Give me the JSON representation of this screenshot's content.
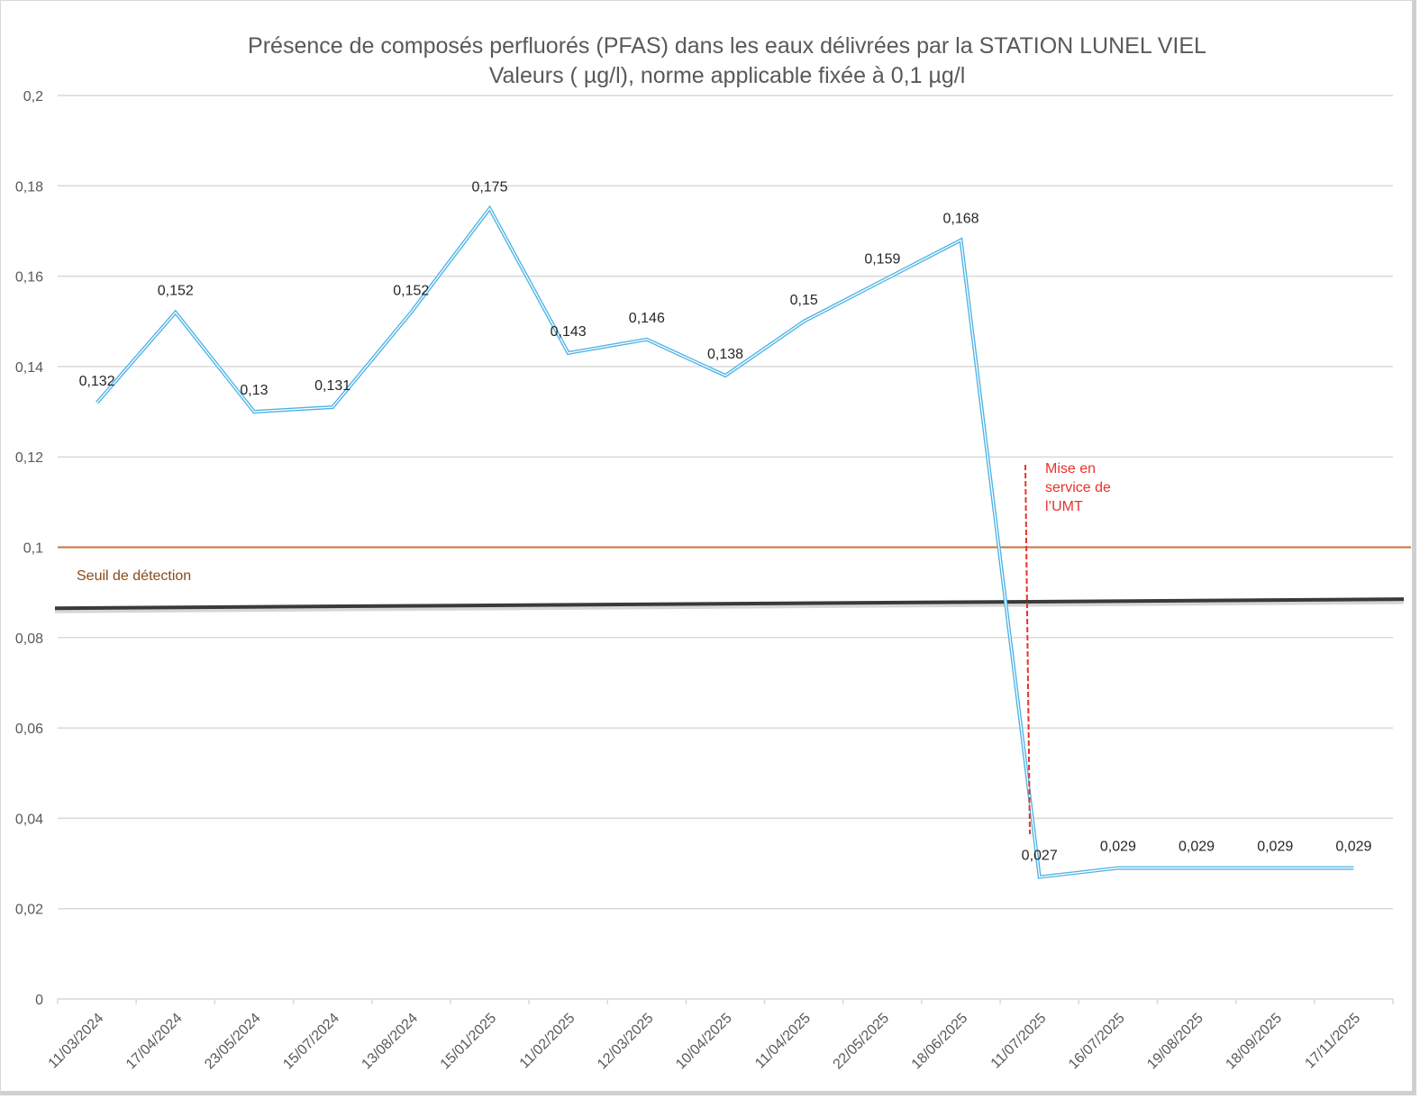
{
  "chart_data": {
    "type": "line",
    "title": "Présence de composés perfluorés (PFAS) dans les eaux délivrées par la STATION LUNEL VIEL",
    "subtitle": "Valeurs ( µg/l), norme applicable fixée à 0,1 µg/l",
    "xlabel": "",
    "ylabel": "",
    "ylim": [
      0,
      0.2
    ],
    "yticks": [
      0,
      0.02,
      0.04,
      0.06,
      0.08,
      0.1,
      0.12,
      0.14,
      0.16,
      0.18,
      0.2
    ],
    "ytick_labels": [
      "0",
      "0,02",
      "0,04",
      "0,06",
      "0,08",
      "0,1",
      "0,12",
      "0,14",
      "0,16",
      "0,18",
      "0,2"
    ],
    "grid": true,
    "categories": [
      "11/03/2024",
      "17/04/2024",
      "23/05/2024",
      "15/07/2024",
      "13/08/2024",
      "15/01/2025",
      "11/02/2025",
      "12/03/2025",
      "10/04/2025",
      "11/04/2025",
      "22/05/2025",
      "18/06/2025",
      "11/07/2025",
      "16/07/2025",
      "19/08/2025",
      "18/09/2025",
      "17/11/2025"
    ],
    "series": [
      {
        "name": "PFAS",
        "color": "#4db3e6",
        "values": [
          0.132,
          0.152,
          0.13,
          0.131,
          0.152,
          0.175,
          0.143,
          0.146,
          0.138,
          0.15,
          0.159,
          0.168,
          0.027,
          0.029,
          0.029,
          0.029,
          0.029
        ],
        "labels": [
          "0,132",
          "0,152",
          "0,13",
          "0,131",
          "0,152",
          "0,175",
          "0,143",
          "0,146",
          "0,138",
          "0,15",
          "0,159",
          "0,168",
          "0,027",
          "0,029",
          "0,029",
          "0,029",
          "0,029"
        ]
      }
    ],
    "reference_lines": [
      {
        "name": "norme",
        "value": 0.1,
        "color": "#c8733a"
      },
      {
        "name": "seuil",
        "label": "Seuil de détection",
        "value_start": 0.0865,
        "value_end": 0.0885,
        "color": "#3a3a3a",
        "label_color": "#8a4a1a"
      }
    ],
    "annotation": {
      "lines": [
        "Mise en",
        "service de",
        "l’UMT"
      ],
      "color": "#e8322a",
      "between_categories": [
        "11/07/2025"
      ]
    }
  }
}
